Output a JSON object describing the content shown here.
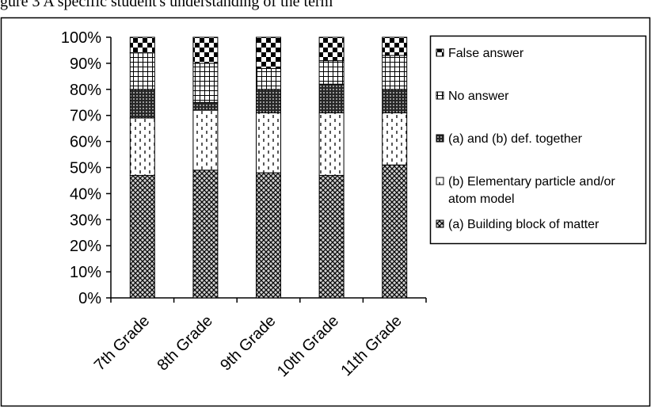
{
  "caption": "gure 3 A specific student's understanding of the term",
  "chart_data": {
    "type": "bar",
    "stacked": true,
    "percent": true,
    "categories": [
      "7th Grade",
      "8th Grade",
      "9th Grade",
      "10th Grade",
      "11th Grade"
    ],
    "series": [
      {
        "name": "(a) Building block of matter",
        "pattern": "crosshatch",
        "values": [
          47,
          49,
          48,
          47,
          51
        ]
      },
      {
        "name": "(b) Elementary particle and/or atom model",
        "name_lines": [
          "(b) Elementary particle and/or",
          "atom model"
        ],
        "pattern": "dashes",
        "values": [
          22,
          23,
          23,
          24,
          20
        ]
      },
      {
        "name": "(a) and (b) def. together",
        "pattern": "dense",
        "values": [
          11,
          3,
          9,
          11,
          9
        ]
      },
      {
        "name": "No answer",
        "pattern": "grid",
        "values": [
          14,
          15,
          8,
          9,
          13
        ]
      },
      {
        "name": "False answer",
        "pattern": "checker",
        "values": [
          6,
          10,
          12,
          9,
          7
        ]
      }
    ],
    "legend_order": [
      "False answer",
      "No answer",
      "(a) and (b) def. together",
      "(b) Elementary particle and/or atom model",
      "(a) Building block of matter"
    ],
    "ylim": [
      0,
      100
    ],
    "y_ticks": [
      "0%",
      "10%",
      "20%",
      "30%",
      "40%",
      "50%",
      "60%",
      "70%",
      "80%",
      "90%",
      "100%"
    ],
    "legend_position": "right",
    "grid": false
  }
}
